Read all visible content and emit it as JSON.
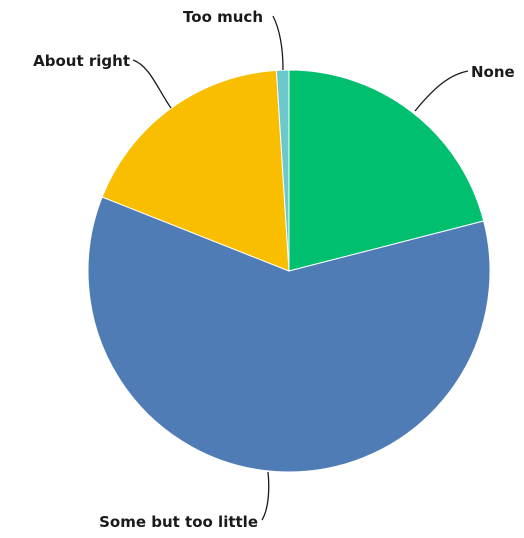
{
  "chart_data": {
    "type": "pie",
    "title": "",
    "slices": [
      {
        "label": "None",
        "value": 21,
        "color": "#00BF6F"
      },
      {
        "label": "Some but too little",
        "value": 60,
        "color": "#507CB6"
      },
      {
        "label": "About right",
        "value": 18,
        "color": "#F9BE00"
      },
      {
        "label": "Too much",
        "value": 1,
        "color": "#6BC8CD"
      }
    ],
    "start_angle_deg": 0,
    "direction": "clockwise",
    "legend": "none",
    "labels": "outside with leader lines"
  }
}
